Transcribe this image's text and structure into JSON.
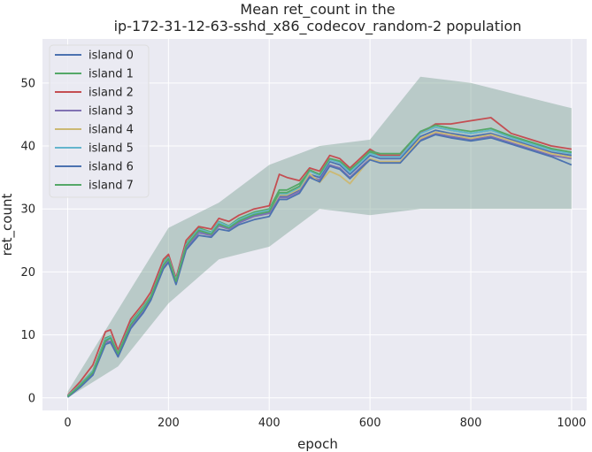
{
  "chart_data": {
    "type": "line",
    "title_line1": "Mean ret_count in the",
    "title_line2": "ip-172-31-12-63-sshd_x86_codecov_random-2 population",
    "xlabel": "epoch",
    "ylabel": "ret_count",
    "xlim": [
      -50,
      1030
    ],
    "ylim": [
      -2,
      57
    ],
    "xticks": [
      0,
      200,
      400,
      600,
      800,
      1000
    ],
    "yticks": [
      0,
      10,
      20,
      30,
      40,
      50
    ],
    "grid": true,
    "legend_position": "top-left",
    "x": [
      0,
      25,
      50,
      75,
      85,
      100,
      125,
      150,
      165,
      190,
      200,
      215,
      235,
      260,
      285,
      300,
      320,
      340,
      370,
      400,
      420,
      435,
      460,
      480,
      500,
      520,
      540,
      560,
      580,
      600,
      620,
      660,
      700,
      730,
      760,
      800,
      840,
      880,
      920,
      960,
      1000
    ],
    "band_x": [
      0,
      100,
      200,
      300,
      400,
      500,
      600,
      700,
      800,
      900,
      1000
    ],
    "band_lower": [
      0,
      5,
      15,
      22,
      24,
      30,
      29,
      30,
      30,
      30,
      30
    ],
    "band_upper": [
      1,
      14,
      27,
      31,
      37,
      40,
      41,
      51,
      50,
      48,
      46
    ],
    "series": [
      {
        "name": "island 0",
        "color": "#4c72b0",
        "values": [
          0.2,
          2,
          4,
          9,
          9.5,
          7,
          11.5,
          14,
          16,
          21,
          22,
          18.5,
          24,
          26.5,
          26,
          27.5,
          27,
          28,
          29,
          29.5,
          32,
          32,
          33,
          35.5,
          35,
          37.5,
          37,
          35.5,
          37,
          38.5,
          38,
          38,
          41.5,
          42.5,
          42,
          41.5,
          42,
          41,
          40,
          39,
          38.5
        ]
      },
      {
        "name": "island 1",
        "color": "#55a868",
        "values": [
          0.3,
          2.2,
          4.3,
          9.5,
          9.8,
          7.2,
          12,
          14.5,
          16.2,
          21.5,
          22.5,
          18.8,
          24.5,
          27,
          26.3,
          28,
          27.3,
          28.5,
          29.5,
          30,
          33,
          33,
          34,
          36,
          35.5,
          38,
          37.5,
          36,
          37.5,
          39,
          38.5,
          38.5,
          42,
          43,
          42.5,
          42,
          42.5,
          41.5,
          40.5,
          39.5,
          39
        ]
      },
      {
        "name": "island 2",
        "color": "#c44e52",
        "values": [
          0.4,
          2.6,
          5.2,
          10.5,
          10.8,
          7.6,
          12.5,
          15,
          16.8,
          22,
          22.8,
          19,
          25,
          27.2,
          26.8,
          28.5,
          28,
          29,
          30,
          30.5,
          35.5,
          35,
          34.5,
          36.5,
          36,
          38.5,
          38,
          36.5,
          38,
          39.5,
          38.5,
          38.5,
          42,
          43.5,
          43.5,
          44,
          44.5,
          42,
          41,
          40,
          39.5
        ]
      },
      {
        "name": "island 3",
        "color": "#8172b3",
        "values": [
          0.2,
          1.8,
          3.8,
          8.8,
          9,
          6.8,
          11.3,
          13.8,
          15.8,
          20.8,
          21.8,
          18.3,
          23.8,
          26.2,
          25.8,
          27.3,
          26.8,
          27.8,
          28.8,
          29.3,
          31.8,
          31.8,
          32.8,
          35.2,
          34.6,
          37,
          36.5,
          35,
          36.5,
          38,
          37.5,
          37.5,
          41,
          42,
          41.5,
          41,
          41.5,
          40.5,
          39.5,
          38.5,
          38
        ]
      },
      {
        "name": "island 4",
        "color": "#ccb974",
        "values": [
          0.3,
          2.1,
          4.1,
          9.2,
          9.6,
          7.1,
          11.7,
          14.2,
          16.1,
          21.2,
          22.2,
          18.6,
          24.2,
          26.7,
          26.1,
          27.8,
          27.1,
          28.2,
          29.2,
          29.7,
          32.2,
          32.2,
          33.2,
          35.6,
          34.2,
          36,
          35.3,
          34,
          36,
          38,
          37.5,
          37.5,
          41.2,
          42.2,
          41.8,
          41.2,
          41.8,
          40.8,
          39.8,
          38.8,
          38.2
        ]
      },
      {
        "name": "island 5",
        "color": "#64b5cd",
        "values": [
          0.3,
          2.1,
          4.2,
          9.3,
          9.7,
          7.1,
          11.8,
          14.3,
          16.1,
          21.3,
          22.3,
          18.7,
          24.3,
          26.8,
          26.2,
          27.9,
          27.2,
          28.3,
          29.3,
          29.8,
          32.4,
          32.4,
          33.4,
          36,
          35.3,
          37.8,
          37.3,
          35.8,
          37.3,
          38.8,
          38.3,
          38.3,
          42,
          43,
          42.5,
          42,
          42.5,
          41.3,
          40.3,
          39.3,
          38.8
        ]
      },
      {
        "name": "island 6",
        "color": "#4c72b0",
        "values": [
          0.1,
          1.7,
          3.6,
          8.5,
          8.8,
          6.5,
          11,
          13.5,
          15.5,
          20.5,
          21.5,
          18,
          23.5,
          25.8,
          25.5,
          26.8,
          26.5,
          27.5,
          28.3,
          28.8,
          31.5,
          31.5,
          32.5,
          35,
          34.3,
          36.8,
          36.3,
          34.8,
          36.3,
          37.8,
          37.3,
          37.3,
          40.8,
          41.8,
          41.3,
          40.8,
          41.3,
          40.3,
          39.3,
          38.3,
          37
        ]
      },
      {
        "name": "island 7",
        "color": "#55a868",
        "values": [
          0.2,
          2,
          4,
          9.1,
          9.5,
          7,
          11.6,
          14.1,
          16,
          21.1,
          22.1,
          18.5,
          24.1,
          26.6,
          26,
          27.6,
          27,
          28.1,
          29.1,
          29.6,
          32.6,
          32.6,
          33.6,
          36.2,
          35.5,
          38,
          37.6,
          36.2,
          37.6,
          39.2,
          38.8,
          38.8,
          42.3,
          43.3,
          42.8,
          42.3,
          42.8,
          41.6,
          40.6,
          39.6,
          39
        ]
      }
    ]
  }
}
